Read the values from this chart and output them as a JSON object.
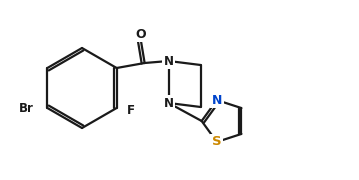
{
  "background_color": "#ffffff",
  "line_color": "#1a1a1a",
  "atom_colors": {
    "Br": "#1a1a1a",
    "F": "#1a1a1a",
    "O": "#1a1a1a",
    "N": "#1a1a1a",
    "S": "#cc8800",
    "N_thiazole": "#0044cc"
  },
  "line_width": 1.6,
  "font_size": 8.5,
  "figsize": [
    3.59,
    1.8
  ],
  "dpi": 100
}
